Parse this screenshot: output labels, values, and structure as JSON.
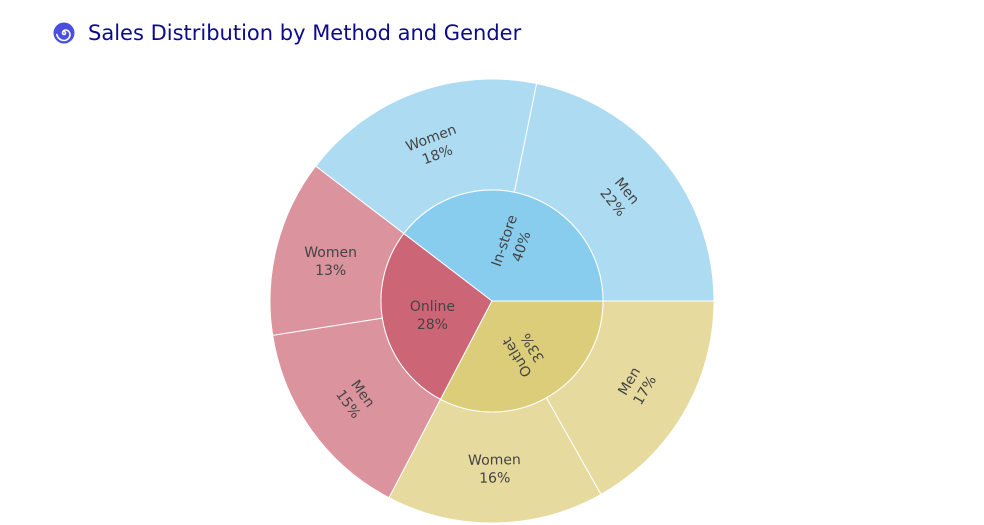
{
  "header": {
    "title": "Sales Distribution by Method and Gender",
    "icon": "spiral-icon",
    "icon_color": "#4b4fe0"
  },
  "chart_data": {
    "type": "sunburst",
    "title": "Sales Distribution by Method and Gender",
    "values_unit": "percent of total",
    "inner": [
      {
        "name": "In-store",
        "value": 40,
        "label": "40%",
        "color": "#88ccee"
      },
      {
        "name": "Online",
        "value": 28,
        "label": "28%",
        "color": "#cc6677"
      },
      {
        "name": "Outlet",
        "value": 33,
        "label": "33%",
        "color": "#dccd7a"
      }
    ],
    "outer": [
      {
        "parent": "In-store",
        "name": "Men",
        "value": 22,
        "label": "22%",
        "color": "#acdbf2"
      },
      {
        "parent": "In-store",
        "name": "Women",
        "value": 18,
        "label": "18%",
        "color": "#acdbf2"
      },
      {
        "parent": "Online",
        "name": "Women",
        "value": 13,
        "label": "13%",
        "color": "#db939e"
      },
      {
        "parent": "Online",
        "name": "Men",
        "value": 15,
        "label": "15%",
        "color": "#db939e"
      },
      {
        "parent": "Outlet",
        "name": "Women",
        "value": 16,
        "label": "16%",
        "color": "#e6da9e"
      },
      {
        "parent": "Outlet",
        "name": "Men",
        "value": 17,
        "label": "17%",
        "color": "#e6da9e"
      }
    ]
  }
}
